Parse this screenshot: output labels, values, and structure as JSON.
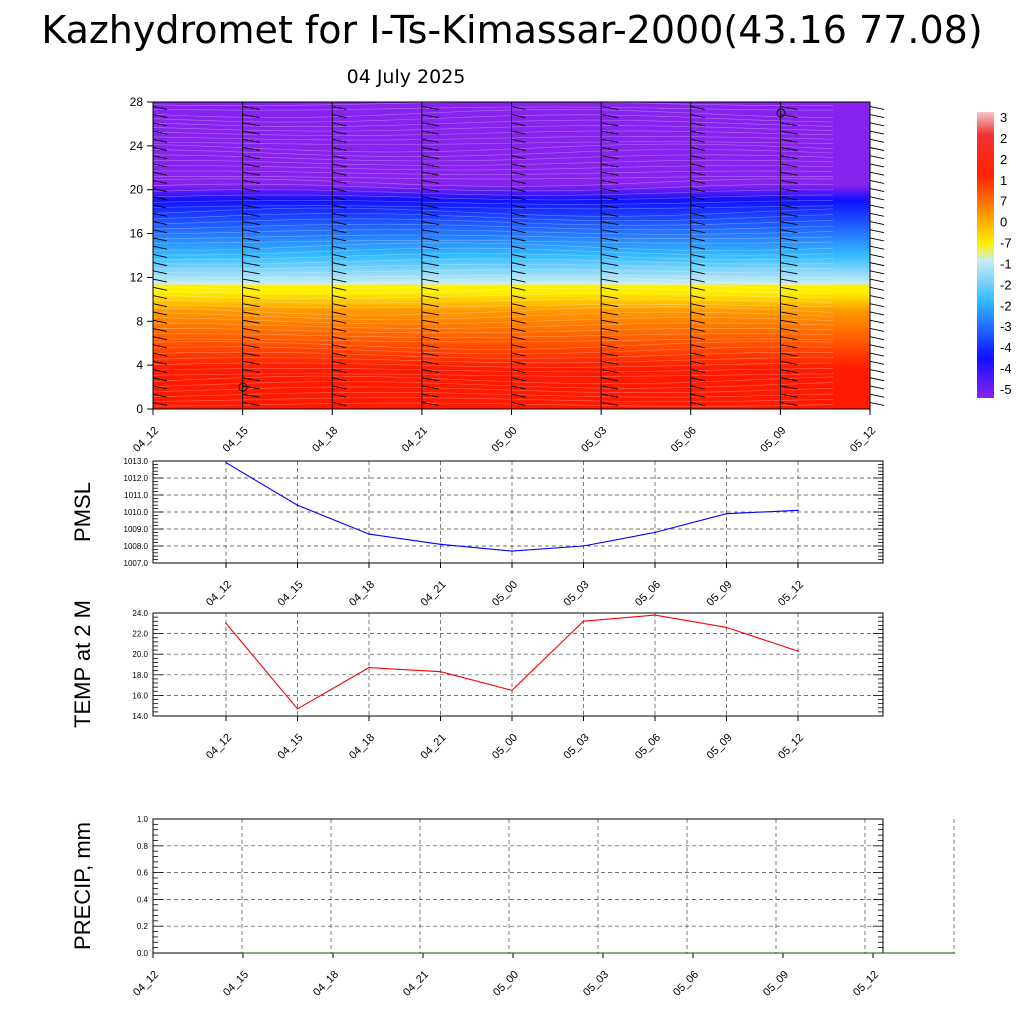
{
  "header": {
    "title": "Kazhydromet for I-Ts-Kimassar-2000(43.16 77.08)",
    "date": "04 July 2025"
  },
  "chart_data": [
    {
      "type": "heatmap",
      "title": "",
      "x_ticks": [
        "04_12",
        "04_15",
        "04_18",
        "04_21",
        "05_00",
        "05_03",
        "05_06",
        "05_09",
        "05_12"
      ],
      "y_ticks": [
        0,
        4,
        8,
        12,
        16,
        20,
        24,
        28
      ],
      "ylim": [
        0,
        28
      ],
      "colorbar_labels": [
        "3",
        "2",
        "2",
        "1",
        "7",
        "0",
        "-7",
        "-1",
        "-2",
        "-2",
        "-3",
        "-4",
        "-4",
        "-5"
      ],
      "colors": {
        "hot": "#ff1a00",
        "orange": "#ff9a00",
        "yellow": "#fff000",
        "light_blue": "#c8ecf5",
        "cyan": "#33bbff",
        "blue": "#1010ff",
        "violet": "#8822ee"
      },
      "barb_glyph": "circle-calm-marker"
    },
    {
      "type": "line",
      "ylabel": "PMSL",
      "categories": [
        "04_12",
        "04_15",
        "04_18",
        "04_21",
        "05_00",
        "05_03",
        "05_06",
        "05_09",
        "05_12"
      ],
      "values": [
        1012.9,
        1010.4,
        1008.7,
        1008.1,
        1007.7,
        1008.0,
        1008.8,
        1009.9,
        1010.1
      ],
      "ylim": [
        1007.0,
        1013.0
      ],
      "y_ticks": [
        "1007.0",
        "1008.0",
        "1009.0",
        "1010.0",
        "1011.0",
        "1012.0",
        "1013.0"
      ],
      "color": "#0000ff",
      "grid": true
    },
    {
      "type": "line",
      "ylabel": "TEMP at 2 M",
      "categories": [
        "04_12",
        "04_15",
        "04_18",
        "04_21",
        "05_00",
        "05_03",
        "05_06",
        "05_09",
        "05_12"
      ],
      "values": [
        23.0,
        14.7,
        18.7,
        18.3,
        16.5,
        23.2,
        23.8,
        22.6,
        20.3
      ],
      "ylim": [
        14.0,
        24.0
      ],
      "y_ticks": [
        "14.0",
        "16.0",
        "18.0",
        "20.0",
        "22.0",
        "24.0"
      ],
      "color": "#ff0000",
      "grid": true
    },
    {
      "type": "line",
      "ylabel": "PRECIP, mm",
      "categories": [
        "04_12",
        "04_15",
        "04_18",
        "04_21",
        "05_00",
        "05_03",
        "05_06",
        "05_09",
        "05_12"
      ],
      "values": [
        0,
        0,
        0,
        0,
        0,
        0,
        0,
        0,
        0
      ],
      "ylim": [
        0.0,
        1.0
      ],
      "y_ticks": [
        "0.0",
        "0.2",
        "0.4",
        "0.6",
        "0.8",
        "1.0"
      ],
      "color": "#006400",
      "grid": true
    }
  ]
}
